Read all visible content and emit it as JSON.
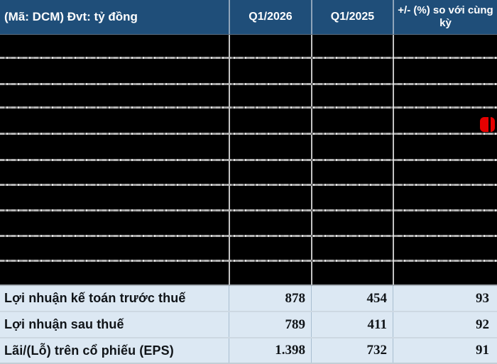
{
  "header": {
    "label": "(Mã: DCM) Đvt: tỷ đồng",
    "col_q1_2026": "Q1/2026",
    "col_q1_2025": "Q1/2025",
    "col_change": "+/- (%) so với cùng kỳ"
  },
  "rows": [
    {
      "label": "Lợi nhuận kế toán trước thuế",
      "q1_2026": "878",
      "q1_2025": "454",
      "change": "93"
    },
    {
      "label": "Lợi nhuận sau thuế",
      "q1_2026": "789",
      "q1_2025": "411",
      "change": "92"
    },
    {
      "label": "Lãi/(Lỗ) trên cổ phiếu (EPS)",
      "q1_2026": "1.398",
      "q1_2025": "732",
      "change": "91"
    }
  ],
  "redacted_row_count": 10,
  "colors": {
    "header_bg": "#1F4E79",
    "header_text": "#FFFFFF",
    "data_row_bg": "#DCE8F3",
    "redacted_bg": "#000000",
    "marker_red": "#E60000"
  },
  "chart_data": {
    "type": "table",
    "title": "(Mã: DCM) Đvt: tỷ đồng",
    "columns": [
      "(Mã: DCM) Đvt: tỷ đồng",
      "Q1/2026",
      "Q1/2025",
      "+/- (%) so với cùng kỳ"
    ],
    "rows": [
      [
        "Lợi nhuận kế toán trước thuế",
        878,
        454,
        93
      ],
      [
        "Lợi nhuận sau thuế",
        789,
        411,
        92
      ],
      [
        "Lãi/(Lỗ) trên cổ phiếu (EPS)",
        "1.398",
        732,
        91
      ]
    ],
    "notes": "Ten rows between the header and the three profit rows are fully blacked out (redacted); unit is tỷ đồng (billion VND), ticker DCM."
  }
}
